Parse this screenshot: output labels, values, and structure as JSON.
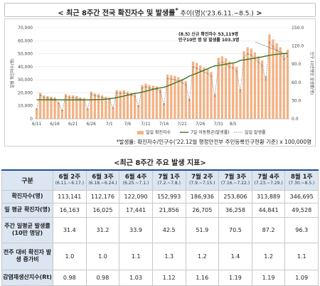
{
  "title": {
    "main": "< 최근 8주간 전국 확진자수 및 발생률",
    "star": "*",
    "period": " 추이(명)('23.6.11.~8.5.)",
    "end": " >"
  },
  "footnote": "*발생률: 확진자수/인구수('22.12월 행정안전부 주민등록인구현황 기준) x 100,000명",
  "chart_data": {
    "type": "bar",
    "x_tick_labels": [
      "6/11",
      "6/16",
      "6/21",
      "6/26",
      "7/1",
      "7/6",
      "7/11",
      "7/16",
      "7/21",
      "7/26",
      "7/31",
      "8/5"
    ],
    "ylabel_left": "일별 확진자수(명)",
    "ylabel_right": "인구 10만명당 발생률(명)",
    "ylim_left": [
      0,
      70000
    ],
    "ylim_right": [
      0,
      150
    ],
    "yticks_left": [
      "0",
      "10,000",
      "20,000",
      "30,000",
      "40,000",
      "50,000",
      "60,000",
      "70,000"
    ],
    "yticks_right": [
      "0.0",
      "30.0",
      "60.0",
      "90.0",
      "120.0",
      "150.0"
    ],
    "annotation_line1": "(8.5) 신규 확진자수 53,119명",
    "annotation_line2": "인구10만 명 당 발생률 103.3명",
    "series": [
      {
        "name": "일일 확진자수",
        "type": "bar",
        "axis": "left",
        "color": "#f4b183",
        "values": [
          8000,
          20000,
          18000,
          17500,
          17000,
          16500,
          13000,
          7000,
          19000,
          18000,
          18000,
          17500,
          16500,
          16000,
          8000,
          21000,
          19500,
          19000,
          18000,
          17000,
          16500,
          9000,
          22000,
          21500,
          22000,
          21000,
          20000,
          19000,
          10500,
          26000,
          27000,
          26000,
          25500,
          25000,
          23000,
          12000,
          34000,
          33500,
          33000,
          32000,
          30500,
          29000,
          15500,
          44000,
          43000,
          41000,
          39500,
          38500,
          36000,
          19000,
          47000,
          48000,
          46500,
          44000,
          43000,
          40000,
          23000,
          52000,
          55000,
          54000,
          51000,
          48000,
          45000,
          33000,
          65000,
          61000,
          58000,
          55000,
          50000,
          53119
        ]
      },
      {
        "name": "7일 이동평균(발생률)",
        "type": "line",
        "axis": "right",
        "color": "#38761d",
        "values": [
          31.4,
          31.4,
          31.3,
          31.3,
          31.2,
          31.2,
          31.2,
          31.2,
          31.2,
          31.2,
          31.2,
          31.2,
          31.2,
          31.2,
          31.2,
          31.3,
          31.4,
          31.6,
          31.9,
          32.3,
          32.9,
          33.9,
          35.0,
          36.2,
          37.5,
          38.9,
          40.5,
          42.0,
          42.5,
          44.0,
          45.5,
          47.0,
          48.5,
          50.0,
          51.0,
          51.9,
          54.0,
          56.5,
          59.0,
          61.5,
          64.0,
          67.0,
          70.5,
          72.5,
          75.0,
          77.5,
          80.0,
          82.5,
          85.0,
          87.2,
          88.0,
          89.0,
          90.0,
          91.0,
          92.0,
          93.5,
          96.3,
          97.0,
          98.0,
          99.0,
          100.0,
          101.0,
          102.0,
          103.3,
          104.5,
          105.5,
          106.3,
          107.0,
          107.5,
          108.0
        ]
      },
      {
        "name": "일일 발생률",
        "type": "line",
        "axis": "right",
        "color": "#7f7f7f",
        "dashed": true,
        "values": [
          15.6,
          38.9,
          35.0,
          34.1,
          33.1,
          32.1,
          25.3,
          13.6,
          37.0,
          35.0,
          35.0,
          34.1,
          32.1,
          31.1,
          15.6,
          40.9,
          38.0,
          37.0,
          35.0,
          33.1,
          32.1,
          17.5,
          42.8,
          41.8,
          42.8,
          40.9,
          38.9,
          37.0,
          20.4,
          50.6,
          52.6,
          50.6,
          49.6,
          48.7,
          44.8,
          23.4,
          66.2,
          65.2,
          64.2,
          62.3,
          59.4,
          56.4,
          30.2,
          85.6,
          83.7,
          79.8,
          76.9,
          74.9,
          70.1,
          37.0,
          91.5,
          93.4,
          90.5,
          85.6,
          83.7,
          77.9,
          44.8,
          101.2,
          107.0,
          105.1,
          99.3,
          93.4,
          87.6,
          64.2,
          126.5,
          118.7,
          112.9,
          107.0,
          97.3,
          103.3
        ]
      }
    ]
  },
  "table": {
    "title": "<최근 8주간 주요 발생 지표>",
    "corner": "구분",
    "columns": [
      {
        "label": "6월 2주",
        "range": "(6.11.~6.17.)"
      },
      {
        "label": "6월 3주",
        "range": "(6.18.~6.24.)"
      },
      {
        "label": "6월 4주",
        "range": "(6.25.~7.1.)"
      },
      {
        "label": "7월 1주",
        "range": "(7.2.~7.8.)"
      },
      {
        "label": "7월 2주",
        "range": "(7.9.~7.15.)"
      },
      {
        "label": "7월 3주",
        "range": "(7.16.~7.22.)"
      },
      {
        "label": "7월 4주",
        "range": "(7.23.~7.29.)"
      },
      {
        "label": "8월 1주",
        "range": "(7.30.~8.5.)"
      }
    ],
    "rows": [
      {
        "label": "확진자수(명)",
        "values": [
          "113,141",
          "112,176",
          "122,090",
          "152,993",
          "186,936",
          "253,806",
          "313,889",
          "346,695"
        ]
      },
      {
        "label": "일 평균 확진자(명)",
        "values": [
          "16,163",
          "16,025",
          "17,441",
          "21,856",
          "26,705",
          "36,258",
          "44,841",
          "49,528"
        ]
      },
      {
        "label": "주간 일평균 발생률(10만 명당)",
        "values": [
          "31.4",
          "31.2",
          "33.9",
          "42.5",
          "51.9",
          "70.5",
          "87.2",
          "96.3"
        ]
      },
      {
        "label": "전주 대비 확진자 발생 증가비",
        "values": [
          "1.0",
          "1.0",
          "1.1",
          "1.3",
          "1.2",
          "1.4",
          "1.2",
          "1.1"
        ]
      },
      {
        "label": "감염재생산지수(Rt)",
        "values": [
          "0.98",
          "0.98",
          "1.03",
          "1.12",
          "1.16",
          "1.19",
          "1.19",
          "1.09"
        ]
      }
    ]
  }
}
